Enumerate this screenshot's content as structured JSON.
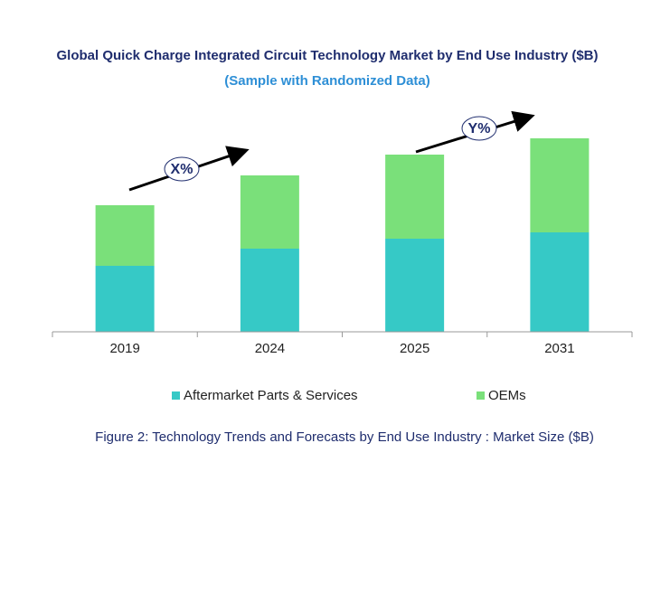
{
  "chart_data": {
    "type": "stacked-bar",
    "title": "Global Quick Charge Integrated Circuit Technology Market by End Use Industry ($B)",
    "subtitle": "(Sample with Randomized Data)",
    "caption": "Figure 2: Technology  Trends  and Forecasts by End Use Industry  : Market Size ($B)",
    "annotations": [
      "X%",
      "Y%"
    ],
    "categories": [
      "2019",
      "2024",
      "2025",
      "2031"
    ],
    "series": [
      {
        "name": "Aftermarket Parts & Services",
        "color": "#36c9c6",
        "values": [
          7.3,
          9.2,
          10.3,
          11.0
        ]
      },
      {
        "name": "OEMs",
        "color": "#7ae07a",
        "values": [
          6.7,
          8.1,
          9.3,
          10.4
        ]
      }
    ],
    "ylim": [
      0,
      25
    ]
  }
}
